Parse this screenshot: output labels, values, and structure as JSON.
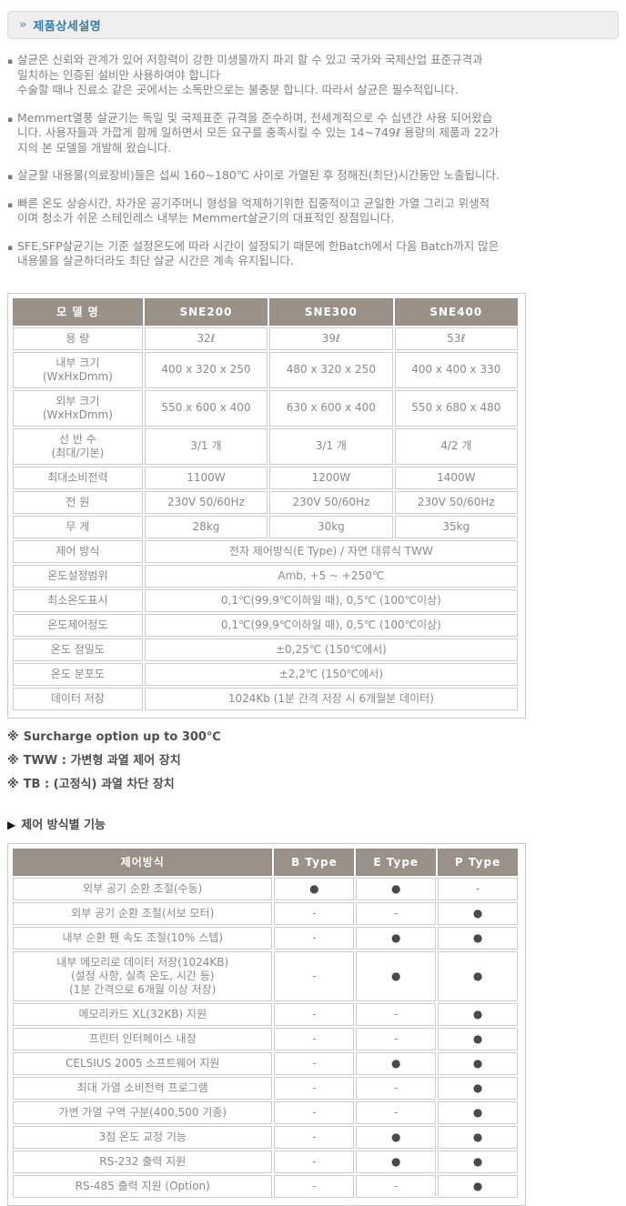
{
  "header": {
    "arrow": "»",
    "title": "제품상세설명"
  },
  "symbols": {
    "bullet": "▪",
    "dot": "●",
    "dash": "-"
  },
  "colors": {
    "accent_blue": "#3b7ca4",
    "table_header_bg": "#9a9189",
    "table_header_text": "#ffffff",
    "table_border": "#cccccc",
    "body_text": "#828282",
    "notes_text": "#4f4f4f",
    "dot": "#4a4a4a",
    "title_bar_bg": "#efefef"
  },
  "intro": {
    "paragraphs": [
      {
        "lines": [
          "살균은 신뢰와 관계가 있어 저항력이 강한 미생물까지 파괴 할 수 있고 국가와 국제산업 표준규격과",
          "일치하는 인증된 설비만 사용하여야 합니다",
          "수술할 때나 진료소 같은 곳에서는 소독만으로는 불충분 합니다. 따라서 살균은 필수적입니다."
        ]
      },
      {
        "lines": [
          "Memmert열풍 살균기는 독일 및 국제표준 규격을 준수하며, 전세계적으로 수 십년간 사용 되어왔습",
          "니다. 사용자들과 가깝게 함께 일하면서 모든 요구를 충족시킬 수 있는 14~749ℓ 용량의 제품과 22가",
          "지의 본 모델을 개발해 왔습니다."
        ]
      },
      {
        "lines": [
          "살균할 내용물(의료장비)들은 섭씨 160~180℃ 사이로 가열된 후 정해진(최단)시간동안 노출됩니다."
        ]
      },
      {
        "lines": [
          "빠른 온도 상승시간, 차가운 공기주머니 형성을 억제하기위한 집중적이고 균일한 가열 그리고 위생적",
          "이며 청소가 쉬운 스테인레스 내부는 Memmert살균기의 대표적인 장점입니다."
        ]
      },
      {
        "lines": [
          "SFE,SFP살균기는 기준 설정온도에 따라 시간이 설정되기 때문에 한Batch에서 다음 Batch까지 많은",
          "내용물을 살균하더라도 최단 살균 시간은 계속 유지됩니다."
        ]
      }
    ]
  },
  "spec_table": {
    "headers": [
      "모 델 명",
      "SNE200",
      "SNE300",
      "SNE400"
    ],
    "rows": [
      {
        "label": [
          "용 량"
        ],
        "values": [
          "32ℓ",
          "39ℓ",
          "53ℓ"
        ]
      },
      {
        "label": [
          "내부 크기",
          "(WxHxDmm)"
        ],
        "values": [
          "400 x 320 x 250",
          "480 x 320 x 250",
          "400 x 400 x 330"
        ]
      },
      {
        "label": [
          "외부 크기",
          "(WxHxDmm)"
        ],
        "values": [
          "550 x 600 x 400",
          "630 x 600 x 400",
          "550 x 680 x 480"
        ]
      },
      {
        "label": [
          "선 반 수",
          "(최대/기본)"
        ],
        "values": [
          "3/1 개",
          "3/1 개",
          "4/2 개"
        ]
      },
      {
        "label": [
          "최대소비전력"
        ],
        "values": [
          "1100W",
          "1200W",
          "1400W"
        ]
      },
      {
        "label": [
          "전 원"
        ],
        "values": [
          "230V 50/60Hz",
          "230V 50/60Hz",
          "230V 50/60Hz"
        ]
      },
      {
        "label": [
          "무 게"
        ],
        "values": [
          "28kg",
          "30kg",
          "35kg"
        ]
      },
      {
        "label": [
          "제어 방식"
        ],
        "span": "전자 제어방식(E Type) / 자연 대류식 TWW"
      },
      {
        "label": [
          "온도설정범위"
        ],
        "span": "Amb, +5 ~ +250℃"
      },
      {
        "label": [
          "최소온도표시"
        ],
        "span": "0,1℃(99,9℃이하일 때), 0,5℃ (100℃이상)"
      },
      {
        "label": [
          "온도제어정도"
        ],
        "span": "0,1℃(99,9℃이하일 때), 0,5℃ (100℃이상)"
      },
      {
        "label": [
          "온도 정밀도"
        ],
        "span": "±0,25℃ (150℃에서)"
      },
      {
        "label": [
          "온도 분포도"
        ],
        "span": "±2,2℃ (150℃에서)"
      },
      {
        "label": [
          "데이터 저장"
        ],
        "span": "1024Kb (1분 간격 저장 시 6개월분 데이터)"
      }
    ]
  },
  "notes": {
    "marker": "※",
    "items": [
      "Surcharge option up to 300℃",
      "TWW : 가변형 과열 제어 장치",
      "TB : (고정식) 과열 차단 장치"
    ]
  },
  "feature_section": {
    "marker": "▶",
    "heading": "제어 방식별 기능",
    "table": {
      "headers": [
        "제어방식",
        "B Type",
        "E Type",
        "P Type"
      ],
      "rows": [
        {
          "label": [
            "외부 공기 순환 조절(수동)"
          ],
          "cells": [
            "dot",
            "dot",
            "dash"
          ]
        },
        {
          "label": [
            "외부 공기 순환 조절(서보 모터)"
          ],
          "cells": [
            "dash",
            "dash",
            "dot"
          ]
        },
        {
          "label": [
            "내부 순환 팬 속도 조절(10% 스텝)"
          ],
          "cells": [
            "dash",
            "dot",
            "dot"
          ]
        },
        {
          "label": [
            "내부 메모리로 데이터 저장(1024KB)",
            "(설정 사항, 실측 온도, 시간 등)",
            "(1분 간격으로 6개월 이상 저장)"
          ],
          "cells": [
            "dash",
            "dot",
            "dot"
          ]
        },
        {
          "label": [
            "메모리카드 XL(32KB) 지원"
          ],
          "cells": [
            "dash",
            "dash",
            "dot"
          ]
        },
        {
          "label": [
            "프린터 인터페이스 내장"
          ],
          "cells": [
            "dash",
            "dash",
            "dot"
          ]
        },
        {
          "label": [
            "CELSIUS 2005 소프트웨어 지원"
          ],
          "cells": [
            "dash",
            "dot",
            "dot"
          ]
        },
        {
          "label": [
            "최대 가열 소비전력 프로그램"
          ],
          "cells": [
            "dash",
            "dash",
            "dot"
          ]
        },
        {
          "label": [
            "가변 가열 구역 구분(400,500 기종)"
          ],
          "cells": [
            "dash",
            "dash",
            "dot"
          ]
        },
        {
          "label": [
            "3점 온도 교정 기능"
          ],
          "cells": [
            "dash",
            "dot",
            "dot"
          ]
        },
        {
          "label": [
            "RS-232 출력 지원"
          ],
          "cells": [
            "dash",
            "dot",
            "dot"
          ]
        },
        {
          "label": [
            "RS-485 출력 지원 (Option)"
          ],
          "cells": [
            "dash",
            "dash",
            "dot"
          ]
        }
      ]
    }
  }
}
